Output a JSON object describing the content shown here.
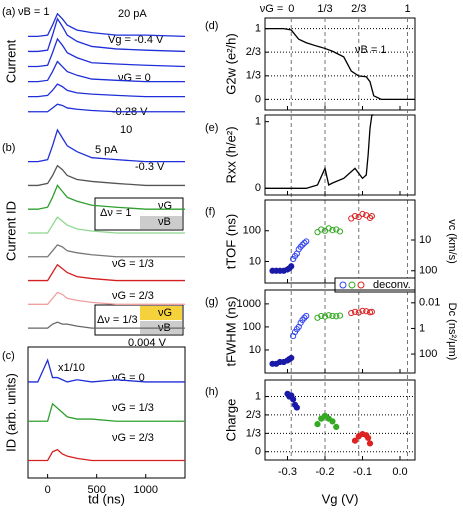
{
  "chart_data": [
    {
      "type": "line",
      "xlim": [
        -200,
        1400
      ],
      "ylim": [
        1.5,
        10.5
      ],
      "x": [
        -200,
        -100,
        0,
        50,
        100,
        150,
        200,
        300,
        450,
        700,
        1000,
        1400
      ],
      "ylabel": "Current",
      "annotations": [
        "(a)",
        "νB = 1",
        "20 pA",
        "Vg = -0.4 V",
        "νG = 0",
        "-0.28 V",
        "10"
      ],
      "series": [
        {
          "color": "#1f2fd8",
          "values": [
            8,
            8,
            8.1,
            8.9,
            9.8,
            9.4,
            8.9,
            8.5,
            8.3,
            8.1,
            8.1,
            8
          ]
        },
        {
          "color": "#1f2fd8",
          "values": [
            6.8,
            6.8,
            6.9,
            8.1,
            9.4,
            8.8,
            8.1,
            7.6,
            7.2,
            7,
            6.9,
            6.8
          ]
        },
        {
          "color": "#1f2fd8",
          "values": [
            5.6,
            5.6,
            5.7,
            6.7,
            7.8,
            7.3,
            6.7,
            6.3,
            5.9,
            5.8,
            5.7,
            5.6
          ]
        },
        {
          "color": "#1f2fd8",
          "values": [
            4.4,
            4.4,
            4.5,
            5.2,
            6,
            5.6,
            5.2,
            4.9,
            4.6,
            4.5,
            4.4,
            4.4
          ]
        },
        {
          "color": "#1f2fd8",
          "values": [
            3.2,
            3.2,
            3.3,
            3.7,
            4.2,
            4,
            3.7,
            3.5,
            3.4,
            3.3,
            3.2,
            3.2
          ]
        },
        {
          "color": "#1f2fd8",
          "values": [
            2,
            2,
            2,
            2.3,
            2.6,
            2.5,
            2.3,
            2.2,
            2.1,
            2,
            2,
            2
          ]
        }
      ]
    },
    {
      "type": "line",
      "xlim": [
        -200,
        1400
      ],
      "ylim": [
        1.2,
        12.2
      ],
      "x": [
        -200,
        -100,
        0,
        50,
        100,
        150,
        200,
        300,
        450,
        700,
        1000,
        1400
      ],
      "ylabel": "Current ID",
      "annotations": [
        "(b)",
        "5 pA",
        "-0.3 V",
        "Δν = 1",
        "νG",
        "νB",
        "νG = 1/3",
        "νG = 2/3",
        "Δν = 1/3",
        "νG",
        "νB",
        "0.004 V"
      ],
      "series": [
        {
          "color": "#1f2fd8",
          "values": [
            10.2,
            10.2,
            10.3,
            11,
            11.8,
            11.4,
            11,
            10.7,
            10.4,
            10.3,
            10.2,
            10.2
          ]
        },
        {
          "color": "#555555",
          "values": [
            9,
            9,
            9.1,
            9.5,
            10,
            9.8,
            9.5,
            9.3,
            9.2,
            9.1,
            9,
            9
          ]
        },
        {
          "color": "#2ea02e",
          "values": [
            7.8,
            7.8,
            7.9,
            8.4,
            9,
            8.7,
            8.4,
            8.2,
            8,
            7.9,
            7.8,
            7.8
          ]
        },
        {
          "color": "#8fd88f",
          "values": [
            6.6,
            6.6,
            6.6,
            7,
            7.4,
            7.2,
            7,
            6.8,
            6.7,
            6.6,
            6.6,
            6.6
          ]
        },
        {
          "color": "#777777",
          "values": [
            5.4,
            5.4,
            5.4,
            5.7,
            6,
            5.9,
            5.7,
            5.6,
            5.5,
            5.4,
            5.4,
            5.4
          ]
        },
        {
          "color": "#d42020",
          "values": [
            4.2,
            4.2,
            4.2,
            4.6,
            5,
            4.8,
            4.6,
            4.4,
            4.3,
            4.2,
            4.2,
            4.2
          ]
        },
        {
          "color": "#f0a0a0",
          "values": [
            3,
            3,
            3,
            3.3,
            3.6,
            3.5,
            3.3,
            3.2,
            3.1,
            3,
            3,
            3
          ]
        },
        {
          "color": "#666666",
          "values": [
            1.8,
            1.8,
            1.8,
            2,
            2.1,
            2,
            2,
            1.9,
            1.8,
            1.8,
            1.8,
            1.8
          ]
        }
      ]
    },
    {
      "type": "line",
      "xlim": [
        -200,
        1400
      ],
      "ylim": [
        0.2,
        3.2
      ],
      "xticks": [
        0,
        500,
        1000
      ],
      "x": [
        -200,
        -100,
        0,
        50,
        100,
        150,
        200,
        300,
        450,
        700,
        1000,
        1400
      ],
      "xlabel": "td (ns)",
      "ylabel": "ID (arb. units)",
      "annotations": [
        "(c)",
        "x1/10",
        "νG = 0",
        "νG = 1/3",
        "νG = 2/3"
      ],
      "series": [
        {
          "color": "#1f2fd8",
          "values": [
            2.4,
            2.4,
            2.9,
            2.5,
            2.5,
            2.45,
            2.4,
            2.45,
            2.4,
            2.45,
            2.4,
            2.4
          ]
        },
        {
          "color": "#2ea02e",
          "values": [
            1.5,
            1.5,
            1.5,
            1.9,
            1.8,
            1.7,
            1.6,
            1.55,
            1.55,
            1.5,
            1.5,
            1.5
          ]
        },
        {
          "color": "#d42020",
          "values": [
            0.6,
            0.6,
            0.6,
            0.8,
            0.85,
            0.75,
            0.7,
            0.65,
            0.6,
            0.6,
            0.6,
            0.6
          ]
        }
      ]
    },
    {
      "type": "line",
      "xlim": [
        -0.36,
        0.04
      ],
      "ylim": [
        -0.15,
        1.15
      ],
      "grid": true,
      "yticks": [
        0,
        {
          "value": 0.333,
          "label": "1/3"
        },
        {
          "value": 0.667,
          "label": "2/3"
        },
        1
      ],
      "x": [
        -0.36,
        -0.33,
        -0.31,
        -0.29,
        -0.27,
        -0.25,
        -0.22,
        -0.2,
        -0.18,
        -0.15,
        -0.13,
        -0.11,
        -0.09,
        -0.08,
        -0.07,
        -0.05,
        -0.03,
        0,
        0.04
      ],
      "ylabel": "G2w (e²/h)",
      "top_label": "νG =",
      "nu_marks": [
        {
          "value": -0.29,
          "label": "0"
        },
        {
          "value": -0.2,
          "label": "1/3"
        },
        {
          "value": -0.11,
          "label": "2/3"
        },
        {
          "value": 0.02,
          "label": "1"
        }
      ],
      "annotations": [
        "(d)",
        "νB = 1"
      ],
      "series": [
        {
          "color": "#000000",
          "values": [
            1,
            1,
            1,
            0.98,
            0.85,
            0.8,
            0.75,
            0.72,
            0.68,
            0.6,
            0.4,
            0.33,
            0.32,
            0.25,
            0.05,
            0,
            0,
            0,
            0
          ]
        }
      ]
    },
    {
      "type": "line",
      "xlim": [
        -0.36,
        0.04
      ],
      "ylim": [
        -0.1,
        1.1
      ],
      "yticks": [
        0,
        1
      ],
      "x": [
        -0.36,
        -0.3,
        -0.25,
        -0.22,
        -0.2,
        -0.19,
        -0.18,
        -0.15,
        -0.12,
        -0.1,
        -0.09,
        -0.085,
        -0.08,
        -0.075,
        -0.07
      ],
      "ylabel": "Rxx (h/e²)",
      "annotations": [
        "(e)"
      ],
      "series": [
        {
          "color": "#000000",
          "values": [
            0,
            0,
            0,
            0.05,
            0.3,
            0.05,
            0.08,
            0.15,
            0.3,
            0.15,
            0.2,
            0.5,
            0.9,
            1.1,
            1.1
          ]
        }
      ]
    },
    {
      "type": "scatter",
      "xlim": [
        -0.36,
        0.04
      ],
      "ylim": [
        2,
        1000
      ],
      "yscale": "log",
      "yticks": [
        10,
        100
      ],
      "y2lim": [
        250,
        0.5
      ],
      "y2ticks": [
        10,
        100
      ],
      "ylabel": "tTOF (ns)",
      "y2label": "vc (km/s)",
      "legend_label": "deconv.",
      "annotations": [
        "(f)"
      ],
      "series": [
        {
          "color": "#1a1aa8",
          "filled": true,
          "x": [
            -0.34,
            -0.33,
            -0.32,
            -0.31,
            -0.3,
            -0.295,
            -0.29
          ],
          "values": [
            5,
            5,
            5,
            5,
            5.5,
            6,
            7
          ]
        },
        {
          "color": "#3344ee",
          "filled": false,
          "x": [
            -0.285,
            -0.28,
            -0.275,
            -0.27,
            -0.265,
            -0.26,
            -0.255,
            -0.25
          ],
          "values": [
            12,
            15,
            18,
            25,
            30,
            35,
            40,
            45
          ]
        },
        {
          "color": "#33aa22",
          "filled": false,
          "x": [
            -0.22,
            -0.21,
            -0.2,
            -0.19,
            -0.18,
            -0.17,
            -0.16
          ],
          "values": [
            90,
            110,
            100,
            120,
            105,
            110,
            95
          ]
        },
        {
          "color": "#dd2222",
          "filled": false,
          "x": [
            -0.13,
            -0.12,
            -0.11,
            -0.1,
            -0.09,
            -0.08,
            -0.075
          ],
          "values": [
            250,
            300,
            280,
            350,
            320,
            260,
            300
          ]
        }
      ]
    },
    {
      "type": "scatter",
      "xlim": [
        -0.36,
        0.04
      ],
      "ylim": [
        1,
        4000
      ],
      "yscale": "log",
      "yticks": [
        10,
        100,
        1000
      ],
      "y2lim": [
        3000,
        0.001
      ],
      "y2ticks": [
        100,
        1,
        0.01
      ],
      "ylabel": "tFWHM (ns)",
      "y2label": "Dc (ns²/μm)",
      "annotations": [
        "(g)"
      ],
      "series": [
        {
          "color": "#1a1aa8",
          "filled": true,
          "x": [
            -0.34,
            -0.33,
            -0.32,
            -0.31,
            -0.3,
            -0.295,
            -0.29
          ],
          "values": [
            2.5,
            2.5,
            3,
            3,
            3.5,
            4,
            4.5
          ]
        },
        {
          "color": "#3344ee",
          "filled": false,
          "x": [
            -0.285,
            -0.28,
            -0.275,
            -0.27,
            -0.265,
            -0.26,
            -0.255,
            -0.25
          ],
          "values": [
            40,
            60,
            80,
            100,
            150,
            200,
            250,
            300
          ]
        },
        {
          "color": "#33aa22",
          "filled": false,
          "x": [
            -0.22,
            -0.21,
            -0.2,
            -0.19,
            -0.18,
            -0.17,
            -0.16
          ],
          "values": [
            250,
            300,
            280,
            320,
            300,
            290,
            310
          ]
        },
        {
          "color": "#dd2222",
          "filled": false,
          "x": [
            -0.13,
            -0.12,
            -0.11,
            -0.1,
            -0.09,
            -0.08,
            -0.075
          ],
          "values": [
            400,
            450,
            420,
            500,
            480,
            430,
            450
          ]
        }
      ]
    },
    {
      "type": "scatter",
      "xlim": [
        -0.36,
        0.04
      ],
      "ylim": [
        -0.15,
        1.3
      ],
      "grid": true,
      "yticks": [
        0,
        {
          "value": 0.333,
          "label": "1/3"
        },
        {
          "value": 0.667,
          "label": "2/3"
        },
        1
      ],
      "xticks": [
        -0.3,
        -0.2,
        -0.1,
        {
          "value": 0,
          "label": "0.0"
        }
      ],
      "xlabel": "Vg (V)",
      "ylabel": "Charge",
      "annotations": [
        "(h)"
      ],
      "series": [
        {
          "color": "#1a1aa8",
          "filled": true,
          "x": [
            -0.3,
            -0.295,
            -0.29,
            -0.285,
            -0.28,
            -0.275
          ],
          "values": [
            1.05,
            1,
            1.02,
            0.95,
            0.85,
            0.8
          ]
        },
        {
          "color": "#33aa22",
          "filled": true,
          "x": [
            -0.22,
            -0.21,
            -0.2,
            -0.19,
            -0.18,
            -0.17
          ],
          "values": [
            0.5,
            0.6,
            0.65,
            0.6,
            0.55,
            0.45
          ]
        },
        {
          "color": "#dd2222",
          "filled": true,
          "x": [
            -0.12,
            -0.11,
            -0.1,
            -0.09,
            -0.085,
            -0.08
          ],
          "values": [
            0.2,
            0.28,
            0.32,
            0.3,
            0.25,
            0.15
          ]
        }
      ]
    }
  ]
}
